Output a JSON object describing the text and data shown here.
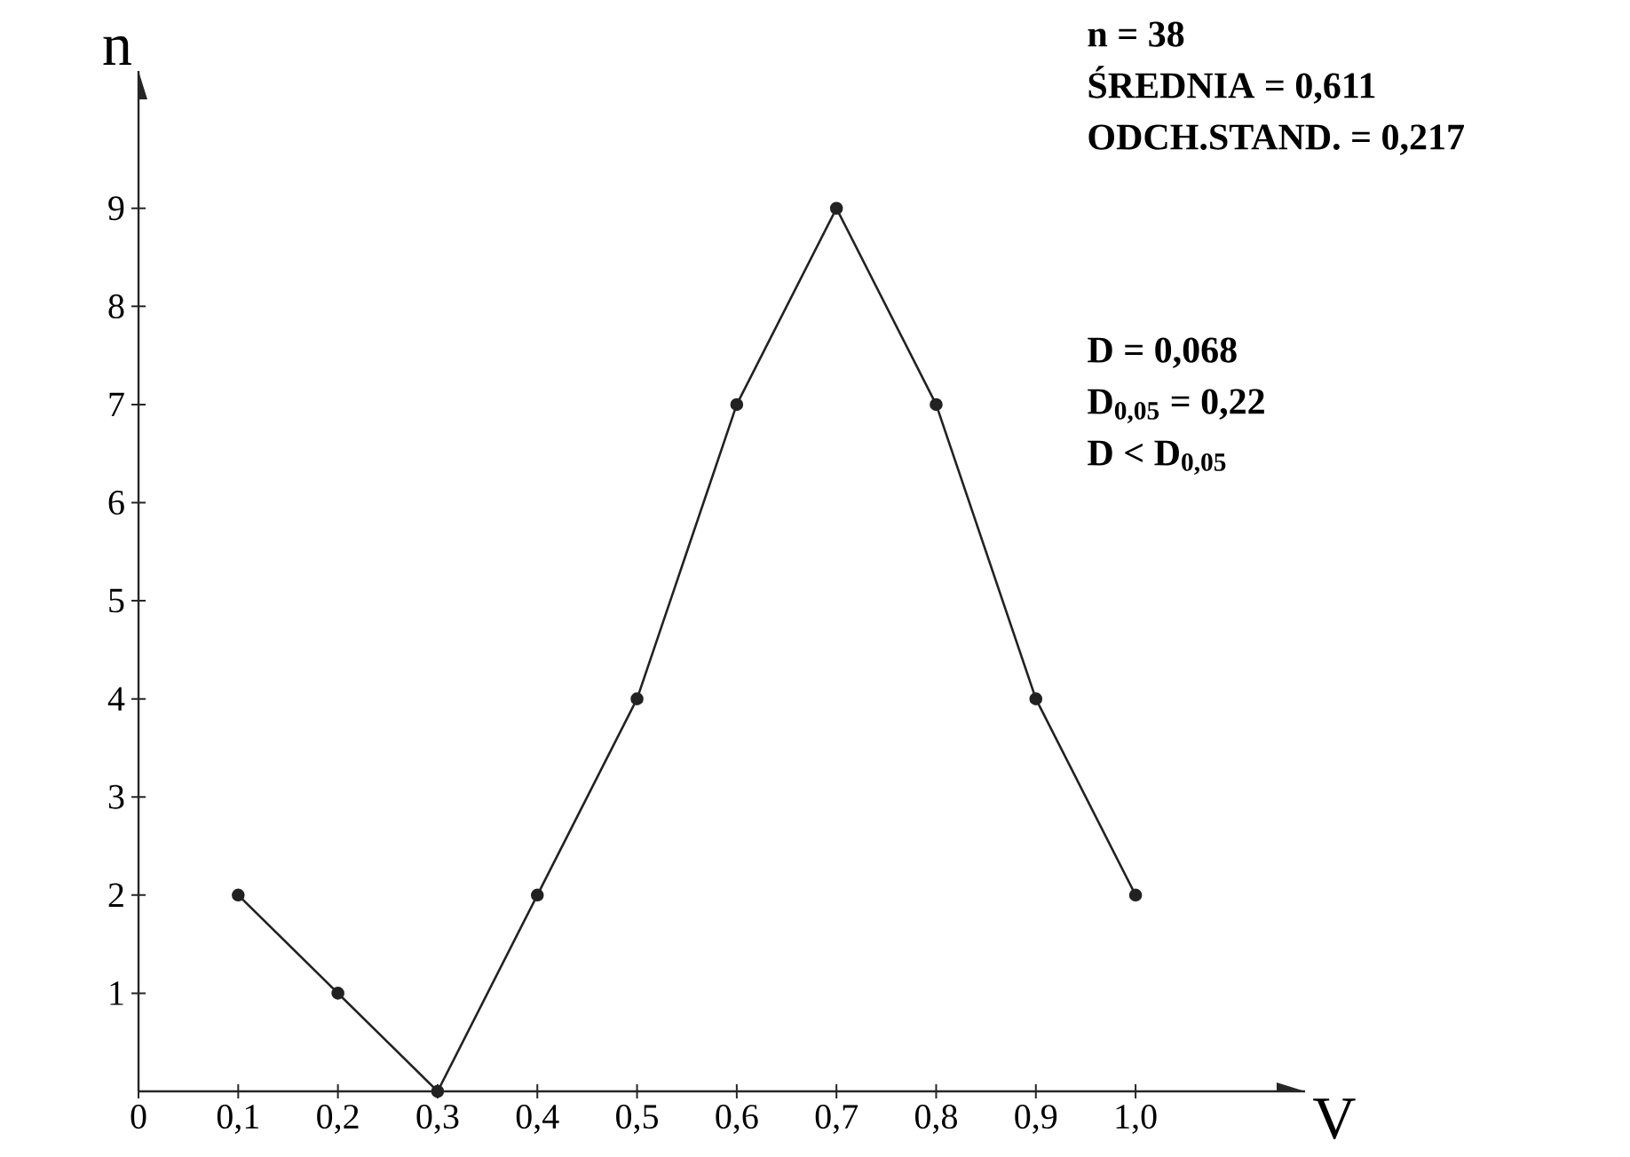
{
  "chart_data": {
    "type": "line",
    "xlabel": "V",
    "ylabel": "n",
    "x": [
      0.1,
      0.2,
      0.3,
      0.4,
      0.5,
      0.6,
      0.7,
      0.8,
      0.9,
      1.0
    ],
    "series": [
      {
        "color": "#222222",
        "values": [
          2,
          1,
          0,
          2,
          4,
          7,
          9,
          7,
          4,
          2
        ]
      }
    ],
    "xlim": [
      0,
      1.17
    ],
    "ylim": [
      0,
      10.4
    ],
    "xticks": [
      0,
      {
        "value": 0.1,
        "label": "0,1"
      },
      {
        "value": 0.2,
        "label": "0,2"
      },
      {
        "value": 0.3,
        "label": "0,3"
      },
      {
        "value": 0.4,
        "label": "0,4"
      },
      {
        "value": 0.5,
        "label": "0,5"
      },
      {
        "value": 0.6,
        "label": "0,6"
      },
      {
        "value": 0.7,
        "label": "0,7"
      },
      {
        "value": 0.8,
        "label": "0,8"
      },
      {
        "value": 0.9,
        "label": "0,9"
      },
      {
        "value": 1.0,
        "label": "1,0"
      }
    ],
    "yticks": [
      1,
      2,
      3,
      4,
      5,
      6,
      7,
      8,
      9
    ],
    "marker": "circle",
    "line_style": "solid",
    "grid": false,
    "annotations": [
      "n = 38",
      "ŚREDNIA = 0,611",
      "ODCH.STAND. = 0,217",
      "D = 0,068",
      "D$_{0,05}$ = 0,22",
      "D < D$_{0,05}$"
    ]
  }
}
